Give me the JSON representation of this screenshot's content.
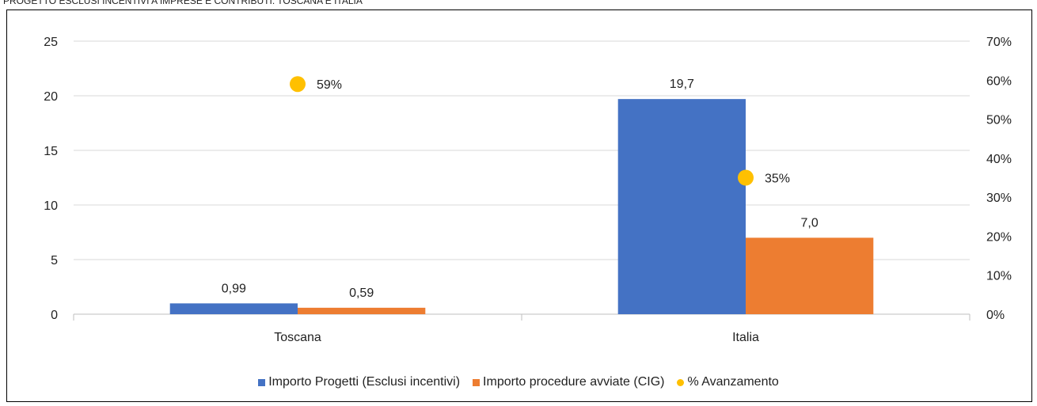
{
  "caption": "PROGETTO ESCLUSI INCENTIVI A IMPRESE E CONTRIBUTI: TOSCANA E ITALIA",
  "colors": {
    "series1": "#4472c4",
    "series2": "#ed7d31",
    "series3": "#ffc000",
    "grid": "#d9d9d9",
    "axis": "#bfbfbf"
  },
  "chart_data": {
    "type": "bar",
    "title": "",
    "categories": [
      "Toscana",
      "Italia"
    ],
    "series": [
      {
        "name": "Importo Progetti (Esclusi incentivi)",
        "type": "bar",
        "axis": "left",
        "values": [
          0.99,
          19.7
        ],
        "labels": [
          "0,99",
          "19,7"
        ],
        "color": "#4472c4"
      },
      {
        "name": "Importo procedure avviate (CIG)",
        "type": "bar",
        "axis": "left",
        "values": [
          0.59,
          7.0
        ],
        "labels": [
          "0,59",
          "7,0"
        ],
        "color": "#ed7d31"
      },
      {
        "name": "% Avanzamento",
        "type": "scatter",
        "axis": "right",
        "values": [
          59,
          35
        ],
        "labels": [
          "59%",
          "35%"
        ],
        "color": "#ffc000"
      }
    ],
    "y_left": {
      "min": 0,
      "max": 25,
      "ticks": [
        "0",
        "5",
        "10",
        "15",
        "20",
        "25"
      ]
    },
    "y_right": {
      "min": 0,
      "max": 70,
      "ticks": [
        "0%",
        "10%",
        "20%",
        "30%",
        "40%",
        "50%",
        "60%",
        "70%"
      ]
    },
    "grid": true,
    "legend_position": "bottom"
  }
}
